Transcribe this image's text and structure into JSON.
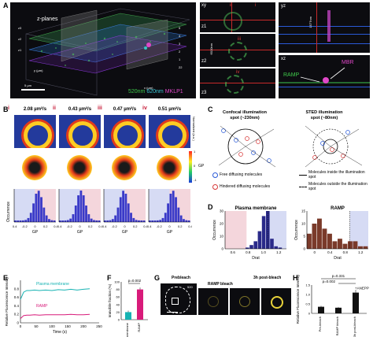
{
  "panels": {
    "A": {
      "label": "A",
      "title": "z-planes",
      "z_ticks": [
        "22",
        "1",
        "2",
        "3",
        "4",
        "5"
      ],
      "z_labels": [
        "z3",
        "z2",
        "z1"
      ],
      "x_ticks": [
        "22",
        "20",
        "18",
        "16",
        "14",
        "12",
        "10",
        "8",
        "6",
        "4",
        "2",
        "0"
      ],
      "x_label": "x (µm)",
      "y_ticks": [
        "2",
        "4",
        "6",
        "8",
        "10",
        "12",
        "14",
        "16",
        "18",
        "20",
        "22"
      ],
      "y_label": "y (µm)",
      "legend_520": "520nm",
      "legend_620": "620nm",
      "legend_mklp1": "MKLP1",
      "scalebar": "5 µm",
      "xy_title": "xy",
      "xy_marks": [
        "ii",
        "i",
        "iii",
        "iv"
      ],
      "xy_planes": [
        "z1",
        "z2",
        "z3"
      ],
      "xy_dim": "6010nm",
      "yz_title": "yz",
      "yz_dim": "1577nm",
      "xz_title": "xz",
      "xz_mbr": "MBR",
      "xz_ramp": "RAMP"
    },
    "B": {
      "label": "B",
      "cols": [
        {
          "roman": "i",
          "value": "2.08 µm²/s"
        },
        {
          "roman": "ii",
          "value": "0.43 µm²/s"
        },
        {
          "roman": "iii",
          "value": "0.47 µm²/s"
        },
        {
          "roman": "iv",
          "value": "0.51 µm²/s"
        }
      ],
      "intensity_label": "Normalized (a.u.)",
      "gp_label": "GP",
      "cb_ticks": [
        "1",
        "0",
        "-1"
      ],
      "hist_ylabel": "Occurrence",
      "hist_xlabel": "GP",
      "hist_ticks": [
        "-0.4",
        "-0.2",
        "0",
        "0.2",
        "0.4"
      ]
    },
    "C": {
      "label": "C",
      "confocal_title": "Confocal illumination",
      "confocal_sub": "spot (~230nm)",
      "sted_title": "STED illumination",
      "sted_sub": "spot (~80nm)",
      "legend_free": "Free diffusing molecules",
      "legend_hindered": "Hindered diffusing molecules",
      "legend_inside": "Molecules inside the illumination spot",
      "legend_outside": "Molecules outside the illumination spot"
    },
    "D": {
      "label": "D",
      "left_title": "Plasma membrane",
      "right_title": "RAMP",
      "ylabel": "Occurrence",
      "xlabel": "Drat",
      "left_x_ticks": [
        "0.6",
        "0.8",
        "1.0",
        "1.2"
      ],
      "right_x_ticks": [
        "0",
        "0.4",
        "0.8",
        "1.2"
      ],
      "left_y_ticks": [
        "0",
        "10",
        "20",
        "30"
      ],
      "right_y_ticks": [
        "0",
        "5",
        "10",
        "15"
      ]
    },
    "E": {
      "label": "E",
      "ylabel": "Relative Fluorescence Intensity",
      "xlabel": "Time (s)",
      "series_pm": "Plasma membrane",
      "series_ramp": "RAMP",
      "x_ticks": [
        "0",
        "50",
        "100",
        "150",
        "200",
        "250"
      ],
      "y_ticks": [
        "0",
        "0.2",
        "0.4",
        "0.6",
        "0.8"
      ]
    },
    "F": {
      "label": "F",
      "ylabel": "Immobile fraction (%)",
      "pval": "p=0.002",
      "y_ticks": [
        "0",
        "20",
        "40",
        "60",
        "80",
        "100"
      ],
      "cats": [
        "Plasma membrane",
        "RAMP"
      ]
    },
    "G": {
      "label": "G",
      "prebleach": "Prebleach",
      "ramp_bleach": "RAMP bleach",
      "post_bleach": "3h post-bleach",
      "time_520": "520"
    },
    "H": {
      "label": "H",
      "ylabel": "Relative Fluorescence Intensity",
      "p1": "p=0.331",
      "p2": "p=0.002",
      "anepp": "+ANEPP",
      "cats": [
        "Pre-bleach",
        "RAMP bleach",
        "3h post-bleach"
      ],
      "y_ticks": [
        "0",
        "0.5",
        "1.0",
        "1.5"
      ]
    }
  },
  "chart_data": [
    {
      "type": "line",
      "title": "",
      "xlabel": "Time (s)",
      "ylabel": "Relative Fluorescence Intensity",
      "ylim": [
        0,
        1.0
      ],
      "xlim": [
        0,
        250
      ],
      "series": [
        {
          "name": "Plasma membrane",
          "color": "#17b3b3",
          "x": [
            0,
            10,
            20,
            30,
            45,
            60,
            80,
            100,
            120,
            140,
            160,
            180,
            200,
            220
          ],
          "y": [
            0.55,
            0.72,
            0.76,
            0.76,
            0.77,
            0.76,
            0.77,
            0.76,
            0.78,
            0.77,
            0.79,
            0.77,
            0.79,
            0.8
          ]
        },
        {
          "name": "RAMP",
          "color": "#d81b7a",
          "x": [
            0,
            10,
            20,
            30,
            45,
            60,
            80,
            100,
            120,
            140,
            160,
            180,
            200,
            220
          ],
          "y": [
            0.1,
            0.17,
            0.18,
            0.18,
            0.19,
            0.18,
            0.19,
            0.19,
            0.19,
            0.19,
            0.2,
            0.19,
            0.19,
            0.2
          ]
        }
      ]
    },
    {
      "type": "bar",
      "title": "",
      "ylabel": "Immobile fraction (%)",
      "categories": [
        "Plasma membrane",
        "RAMP"
      ],
      "values": [
        20,
        80
      ],
      "errors": [
        4,
        5
      ],
      "colors": [
        "#17b3b3",
        "#d81b7a"
      ],
      "ylim": [
        0,
        100
      ]
    },
    {
      "type": "bar",
      "title": "",
      "ylabel": "Relative Fluorescence Intensity",
      "categories": [
        "Pre-bleach",
        "RAMP bleach",
        "3h post-bleach"
      ],
      "values": [
        0.35,
        0.3,
        1.1
      ],
      "errors": [
        0.05,
        0.04,
        0.15
      ],
      "colors": [
        "#111111",
        "#111111",
        "#111111"
      ],
      "ylim": [
        0,
        1.5
      ]
    },
    {
      "type": "bar",
      "title": "Plasma membrane",
      "xlabel": "Drat",
      "ylabel": "Occurrence",
      "categories": [
        "0.55",
        "0.6",
        "0.65",
        "0.7",
        "0.75",
        "0.8",
        "0.85",
        "0.9",
        "0.95",
        "1.0",
        "1.05",
        "1.1",
        "1.15",
        "1.2",
        "1.25"
      ],
      "values": [
        0,
        0,
        0,
        0,
        0,
        1,
        3,
        6,
        14,
        26,
        30,
        8,
        2,
        1,
        0
      ],
      "ylim": [
        0,
        30
      ]
    },
    {
      "type": "bar",
      "title": "RAMP",
      "xlabel": "Drat",
      "ylabel": "Occurrence",
      "categories": [
        "0.1",
        "0.2",
        "0.3",
        "0.4",
        "0.5",
        "0.6",
        "0.7",
        "0.8",
        "0.9",
        "1.0",
        "1.1",
        "1.2"
      ],
      "values": [
        6,
        10,
        12,
        8,
        6,
        3,
        4,
        2,
        3,
        3,
        1,
        1
      ],
      "ylim": [
        0,
        15
      ]
    }
  ]
}
